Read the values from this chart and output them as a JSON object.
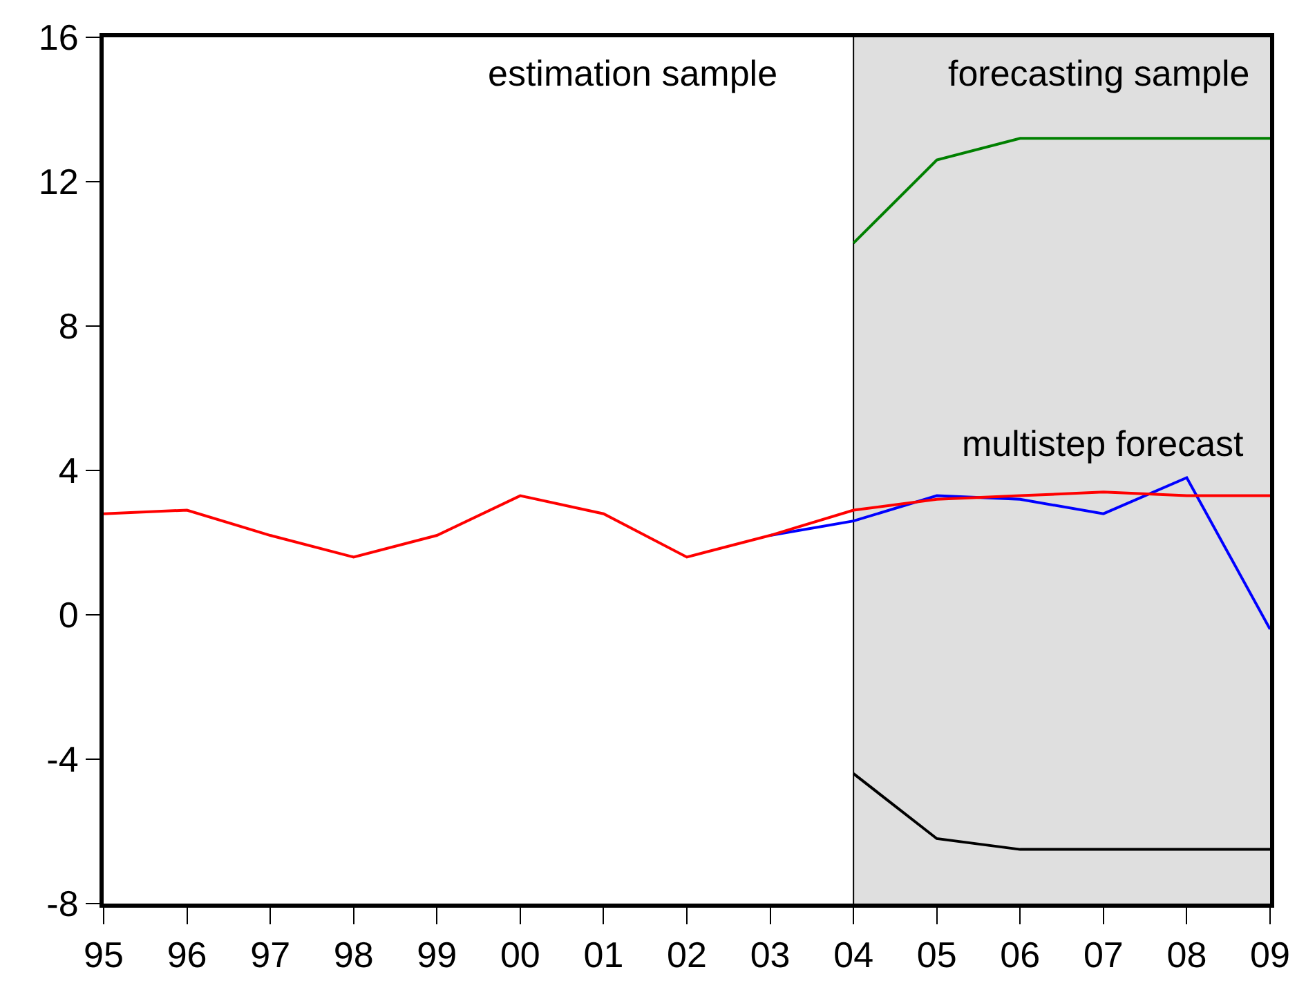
{
  "chart_data": {
    "type": "line",
    "categories": [
      "95",
      "96",
      "97",
      "98",
      "99",
      "00",
      "01",
      "02",
      "03",
      "04",
      "05",
      "06",
      "07",
      "08",
      "09"
    ],
    "series": [
      {
        "color": "#0000ff",
        "values": [
          null,
          null,
          null,
          null,
          null,
          null,
          null,
          null,
          2.2,
          2.6,
          3.3,
          3.2,
          2.8,
          3.8,
          -0.4
        ]
      },
      {
        "color": "#ff0000",
        "values": [
          2.8,
          2.9,
          2.2,
          1.6,
          2.2,
          3.3,
          2.8,
          1.6,
          2.2,
          2.9,
          3.2,
          3.3,
          3.4,
          3.3,
          3.3
        ]
      },
      {
        "color": "#008000",
        "values": [
          null,
          null,
          null,
          null,
          null,
          null,
          null,
          null,
          null,
          10.3,
          12.6,
          13.2,
          13.2,
          13.2,
          13.2
        ]
      },
      {
        "color": "#000000",
        "values": [
          null,
          null,
          null,
          null,
          null,
          null,
          null,
          null,
          null,
          -4.4,
          -6.2,
          -6.5,
          -6.5,
          -6.5,
          -6.5
        ]
      }
    ],
    "ylim": [
      -8,
      16
    ],
    "yticks": [
      -8,
      -4,
      0,
      4,
      8,
      12,
      16
    ],
    "bands": [
      {
        "axis": "x",
        "from": "04",
        "to": "09",
        "color": "#dfdfdf"
      }
    ],
    "ref_lines": [
      {
        "axis": "x",
        "value": "04",
        "color": "#000000"
      }
    ],
    "annotations": [
      "estimation sample",
      "forecasting sample",
      {
        "text": "multistep forecast",
        "x": "07",
        "y": 3.4
      }
    ],
    "marker": "none",
    "line_style": "solid"
  }
}
